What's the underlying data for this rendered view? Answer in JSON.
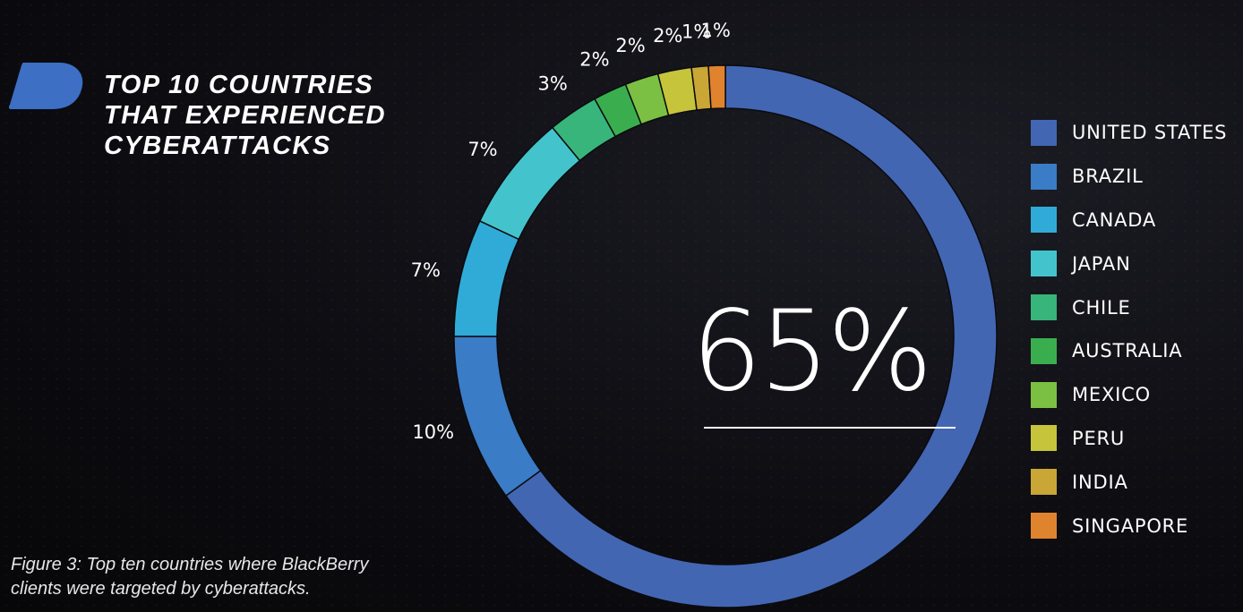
{
  "title_lines": [
    "TOP 10 COUNTRIES",
    "THAT EXPERIENCED",
    "CYBERATTACKS"
  ],
  "caption_lines": [
    "Figure 3: Top ten countries where BlackBerry",
    "clients were targeted by cyberattacks."
  ],
  "highlight_value": "65%",
  "logo_color": "#3d6fc4",
  "chart_data": {
    "type": "pie",
    "style": "donut",
    "categories": [
      "UNITED STATES",
      "BRAZIL",
      "CANADA",
      "JAPAN",
      "CHILE",
      "AUSTRALIA",
      "MEXICO",
      "PERU",
      "INDIA",
      "SINGAPORE"
    ],
    "values": [
      65,
      10,
      7,
      7,
      3,
      2,
      2,
      2,
      1,
      1
    ],
    "value_labels": [
      "65%",
      "10%",
      "7%",
      "7%",
      "3%",
      "2%",
      "2%",
      "2%",
      "1%",
      "1%"
    ],
    "colors": [
      "#4366b3",
      "#3a7cc6",
      "#30abd8",
      "#43c4cc",
      "#37b57a",
      "#3aae4f",
      "#7bc043",
      "#c6c43a",
      "#c9a635",
      "#e0832e"
    ],
    "legend_position": "right",
    "start_angle_deg": 0,
    "direction": "clockwise"
  }
}
